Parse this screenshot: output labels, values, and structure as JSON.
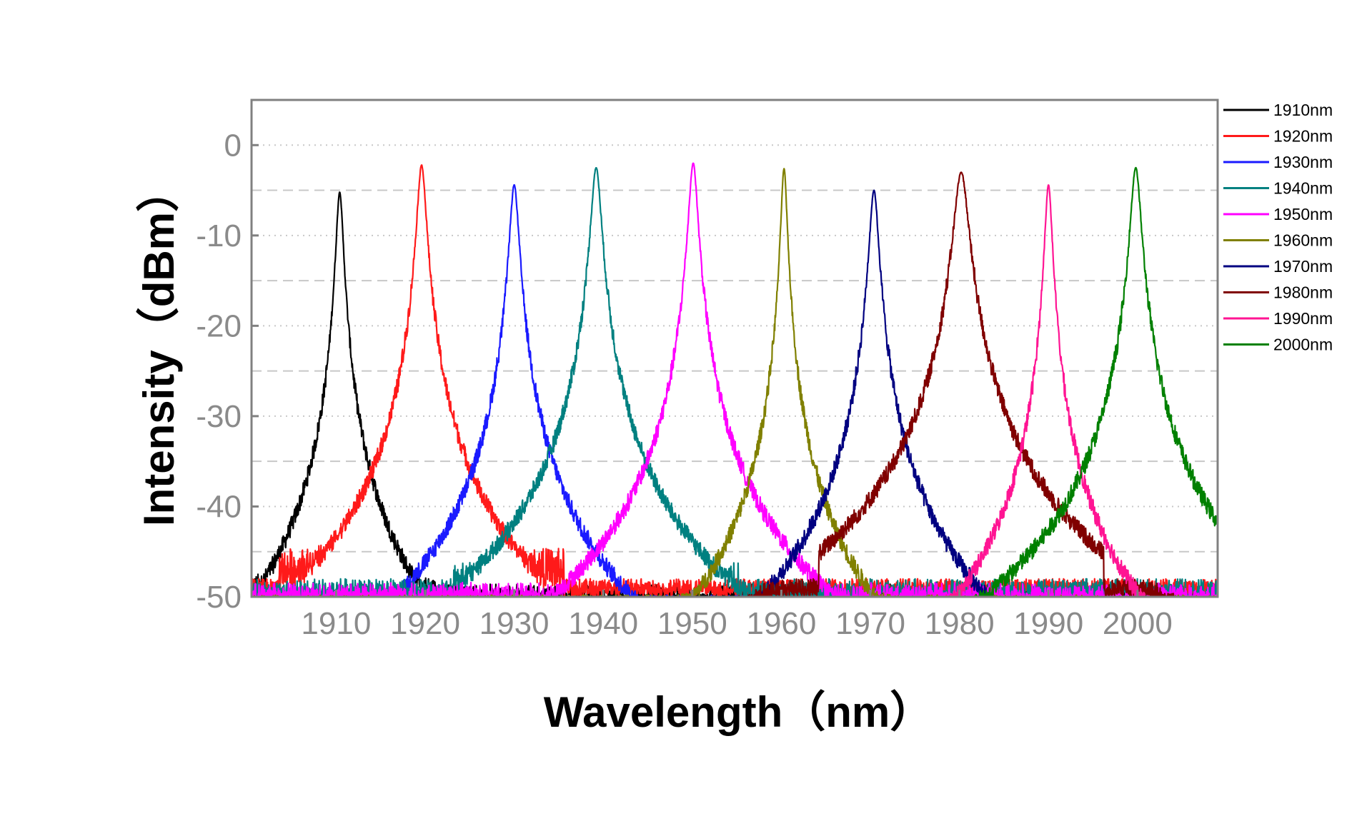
{
  "chart_data": {
    "type": "line",
    "xlabel": "Wavelength（nm）",
    "ylabel": "Intensity（dBm）",
    "xlim": [
      1900.5,
      2009
    ],
    "ylim": [
      -50,
      5
    ],
    "xticks": [
      1910,
      1920,
      1930,
      1940,
      1950,
      1960,
      1970,
      1980,
      1990,
      2000
    ],
    "yticks": [
      0,
      -10,
      -20,
      -30,
      -40,
      -50
    ],
    "grid": "horizontal dotted at 0, -10, -20, -30, -40; dashed at -5, -15, -25, -35, -45",
    "legend_position": "right, outside plot",
    "series": [
      {
        "name": "1910nm",
        "color": "#000000",
        "peak_x": 1910.4,
        "peak_y": -5.2,
        "width": 0.35,
        "noise_floor": -47,
        "noise_span": 7
      },
      {
        "name": "1920nm",
        "color": "#ff1a1a",
        "peak_x": 1919.6,
        "peak_y": -2.2,
        "width": 0.45,
        "noise_floor": -44,
        "noise_span": 12
      },
      {
        "name": "1930nm",
        "color": "#1a1aff",
        "peak_x": 1930.0,
        "peak_y": -4.4,
        "width": 0.45,
        "noise_floor": -48,
        "noise_span": 6
      },
      {
        "name": "1940nm",
        "color": "#008080",
        "peak_x": 1939.2,
        "peak_y": -2.5,
        "width": 0.5,
        "noise_floor": -46,
        "noise_span": 14
      },
      {
        "name": "1950nm",
        "color": "#ff00ff",
        "peak_x": 1950.1,
        "peak_y": -2.0,
        "width": 0.45,
        "noise_floor": -47,
        "noise_span": 8
      },
      {
        "name": "1960nm",
        "color": "#808000",
        "peak_x": 1960.3,
        "peak_y": -2.6,
        "width": 0.3,
        "noise_floor": -48,
        "noise_span": 6
      },
      {
        "name": "1970nm",
        "color": "#000080",
        "peak_x": 1970.4,
        "peak_y": -5.0,
        "width": 0.45,
        "noise_floor": -48,
        "noise_span": 5
      },
      {
        "name": "1980nm",
        "color": "#800000",
        "peak_x": 1980.2,
        "peak_y": -3.0,
        "width": 0.7,
        "noise_floor": -49,
        "noise_span": 3
      },
      {
        "name": "1990nm",
        "color": "#ff1493",
        "peak_x": 1990.0,
        "peak_y": -4.4,
        "width": 0.35,
        "noise_floor": -48,
        "noise_span": 5
      },
      {
        "name": "2000nm",
        "color": "#008000",
        "peak_x": 1999.8,
        "peak_y": -2.5,
        "width": 0.5,
        "noise_floor": -49,
        "noise_span": 3
      }
    ]
  }
}
